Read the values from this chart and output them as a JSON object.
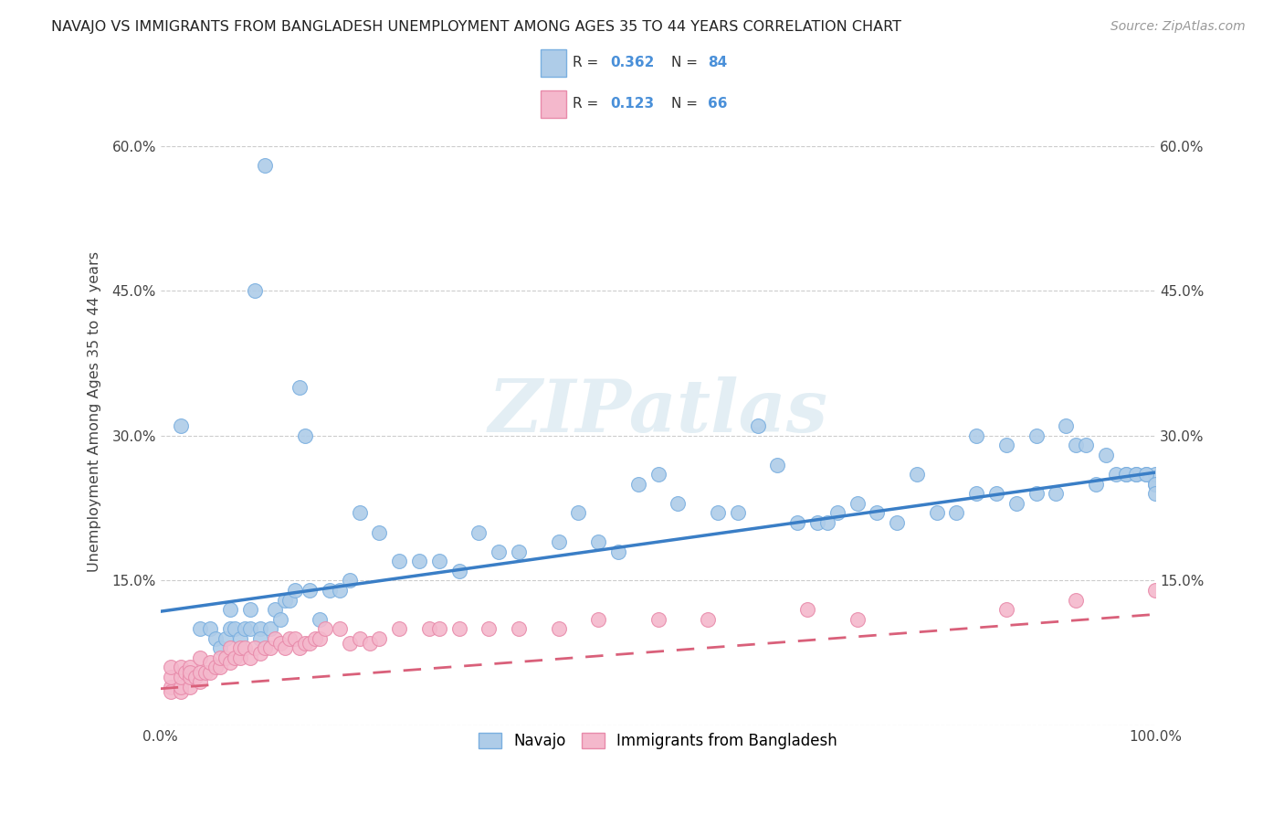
{
  "title": "NAVAJO VS IMMIGRANTS FROM BANGLADESH UNEMPLOYMENT AMONG AGES 35 TO 44 YEARS CORRELATION CHART",
  "source": "Source: ZipAtlas.com",
  "ylabel": "Unemployment Among Ages 35 to 44 years",
  "xlim": [
    0,
    1.0
  ],
  "ylim": [
    0,
    0.65
  ],
  "xticks": [
    0.0,
    0.2,
    0.4,
    0.6,
    0.8,
    1.0
  ],
  "xticklabels": [
    "0.0%",
    "",
    "",
    "",
    "",
    "100.0%"
  ],
  "ytick_positions": [
    0.0,
    0.15,
    0.3,
    0.45,
    0.6
  ],
  "yticklabels_left": [
    "",
    "15.0%",
    "30.0%",
    "45.0%",
    "60.0%"
  ],
  "yticklabels_right": [
    "",
    "15.0%",
    "30.0%",
    "45.0%",
    "60.0%"
  ],
  "navajo_color": "#aecce8",
  "navajo_edge_color": "#7aafe0",
  "bangladesh_color": "#f4b8cc",
  "bangladesh_edge_color": "#e88aaa",
  "navajo_line_color": "#3a7ec6",
  "bangladesh_line_color": "#d9607a",
  "R_navajo": "0.362",
  "N_navajo": "84",
  "R_bangladesh": "0.123",
  "N_bangladesh": "66",
  "legend_color_navajo": "#aecce8",
  "legend_color_bangladesh": "#f4b8cc",
  "legend_edge_navajo": "#7aafe0",
  "legend_edge_bangladesh": "#e88aaa",
  "watermark_text": "ZIPatlas",
  "navajo_x": [
    0.02,
    0.04,
    0.05,
    0.055,
    0.06,
    0.065,
    0.07,
    0.07,
    0.075,
    0.08,
    0.085,
    0.09,
    0.09,
    0.095,
    0.1,
    0.1,
    0.105,
    0.11,
    0.115,
    0.12,
    0.125,
    0.13,
    0.135,
    0.14,
    0.145,
    0.15,
    0.16,
    0.17,
    0.18,
    0.19,
    0.2,
    0.22,
    0.24,
    0.26,
    0.28,
    0.3,
    0.32,
    0.34,
    0.36,
    0.4,
    0.42,
    0.44,
    0.46,
    0.48,
    0.5,
    0.52,
    0.56,
    0.58,
    0.6,
    0.62,
    0.64,
    0.66,
    0.68,
    0.7,
    0.72,
    0.74,
    0.76,
    0.78,
    0.8,
    0.82,
    0.84,
    0.86,
    0.88,
    0.9,
    0.92,
    0.94,
    0.96,
    0.97,
    0.98,
    0.99,
    1.0,
    1.0,
    0.67,
    0.82,
    0.85,
    0.88,
    0.91,
    0.93,
    0.95,
    0.97,
    0.98,
    0.99,
    1.0,
    1.0
  ],
  "navajo_y": [
    0.31,
    0.1,
    0.1,
    0.09,
    0.08,
    0.09,
    0.1,
    0.12,
    0.1,
    0.09,
    0.1,
    0.1,
    0.12,
    0.45,
    0.1,
    0.09,
    0.58,
    0.1,
    0.12,
    0.11,
    0.13,
    0.13,
    0.14,
    0.35,
    0.3,
    0.14,
    0.11,
    0.14,
    0.14,
    0.15,
    0.22,
    0.2,
    0.17,
    0.17,
    0.17,
    0.16,
    0.2,
    0.18,
    0.18,
    0.19,
    0.22,
    0.19,
    0.18,
    0.25,
    0.26,
    0.23,
    0.22,
    0.22,
    0.31,
    0.27,
    0.21,
    0.21,
    0.22,
    0.23,
    0.22,
    0.21,
    0.26,
    0.22,
    0.22,
    0.24,
    0.24,
    0.23,
    0.24,
    0.24,
    0.29,
    0.25,
    0.26,
    0.26,
    0.26,
    0.26,
    0.25,
    0.26,
    0.21,
    0.3,
    0.29,
    0.3,
    0.31,
    0.29,
    0.28,
    0.26,
    0.26,
    0.26,
    0.25,
    0.24
  ],
  "bangladesh_x": [
    0.01,
    0.01,
    0.01,
    0.01,
    0.02,
    0.02,
    0.02,
    0.02,
    0.025,
    0.03,
    0.03,
    0.03,
    0.03,
    0.035,
    0.04,
    0.04,
    0.04,
    0.045,
    0.05,
    0.05,
    0.055,
    0.06,
    0.06,
    0.065,
    0.07,
    0.07,
    0.075,
    0.08,
    0.08,
    0.085,
    0.09,
    0.095,
    0.1,
    0.105,
    0.11,
    0.115,
    0.12,
    0.125,
    0.13,
    0.135,
    0.14,
    0.145,
    0.15,
    0.155,
    0.16,
    0.165,
    0.18,
    0.19,
    0.2,
    0.21,
    0.22,
    0.24,
    0.27,
    0.3,
    0.33,
    0.36,
    0.4,
    0.44,
    0.5,
    0.55,
    0.65,
    0.7,
    0.85,
    0.92,
    1.0,
    0.28
  ],
  "bangladesh_y": [
    0.04,
    0.035,
    0.05,
    0.06,
    0.035,
    0.04,
    0.05,
    0.06,
    0.055,
    0.04,
    0.05,
    0.06,
    0.055,
    0.05,
    0.045,
    0.055,
    0.07,
    0.055,
    0.055,
    0.065,
    0.06,
    0.06,
    0.07,
    0.07,
    0.065,
    0.08,
    0.07,
    0.07,
    0.08,
    0.08,
    0.07,
    0.08,
    0.075,
    0.08,
    0.08,
    0.09,
    0.085,
    0.08,
    0.09,
    0.09,
    0.08,
    0.085,
    0.085,
    0.09,
    0.09,
    0.1,
    0.1,
    0.085,
    0.09,
    0.085,
    0.09,
    0.1,
    0.1,
    0.1,
    0.1,
    0.1,
    0.1,
    0.11,
    0.11,
    0.11,
    0.12,
    0.11,
    0.12,
    0.13,
    0.14,
    0.1
  ]
}
